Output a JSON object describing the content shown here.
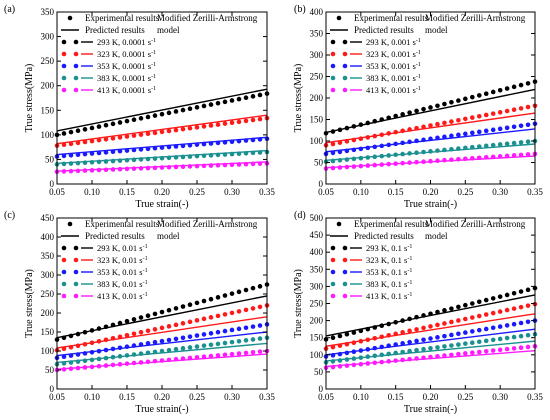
{
  "panels": [
    {
      "tag": "(a)",
      "model_label": [
        "Modified Zerilli-Armstrong",
        "model"
      ],
      "legend_exp": "Experimental results",
      "legend_pred": "Predicted results",
      "xlabel": "True strain(-)",
      "ylabel": "True stress(MPa)",
      "xlim": [
        0.05,
        0.35
      ],
      "ylim": [
        0,
        350
      ],
      "xticks": [
        "0.05",
        "0.10",
        "0.15",
        "0.20",
        "0.25",
        "0.30",
        "0.35"
      ],
      "yticks": [
        "0",
        "50",
        "100",
        "150",
        "200",
        "250",
        "300",
        "350"
      ],
      "series": [
        {
          "name": "293 K, 0.0001 s",
          "sup": "-1",
          "color": "#000000",
          "exp": [
            100,
            184
          ],
          "pred": [
            108,
            193
          ]
        },
        {
          "name": "323 K, 0.0001 s",
          "sup": "-1",
          "color": "#ff1a1a",
          "exp": [
            78,
            134
          ],
          "pred": [
            82,
            140
          ]
        },
        {
          "name": "353 K, 0.0001 s",
          "sup": "-1",
          "color": "#1a1aff",
          "exp": [
            56,
            92
          ],
          "pred": [
            60,
            95
          ]
        },
        {
          "name": "383 K, 0.0001 s",
          "sup": "-1",
          "color": "#1a9090",
          "exp": [
            40,
            65
          ],
          "pred": [
            42,
            68
          ]
        },
        {
          "name": "413 K, 0.0001 s",
          "sup": "-1",
          "color": "#ff1aff",
          "exp": [
            25,
            42
          ],
          "pred": [
            26,
            45
          ]
        }
      ]
    },
    {
      "tag": "(b)",
      "model_label": [
        "Modified Zerilli-Armstrong",
        "model"
      ],
      "legend_exp": "Experimental results",
      "legend_pred": "Predicted results",
      "xlabel": "True strain(-)",
      "ylabel": "True stress(MPa)",
      "xlim": [
        0.05,
        0.35
      ],
      "ylim": [
        0,
        400
      ],
      "xticks": [
        "0.05",
        "0.10",
        "0.15",
        "0.20",
        "0.25",
        "0.30",
        "0.35"
      ],
      "yticks": [
        "0",
        "50",
        "100",
        "150",
        "200",
        "250",
        "300",
        "350",
        "400"
      ],
      "series": [
        {
          "name": "293 K, 0.001 s",
          "sup": "-1",
          "color": "#000000",
          "exp": [
            118,
            238
          ],
          "pred": [
            120,
            220
          ]
        },
        {
          "name": "323 K, 0.001 s",
          "sup": "-1",
          "color": "#ff1a1a",
          "exp": [
            90,
            182
          ],
          "pred": [
            96,
            165
          ]
        },
        {
          "name": "353 K, 0.001 s",
          "sup": "-1",
          "color": "#1a1aff",
          "exp": [
            70,
            140
          ],
          "pred": [
            75,
            128
          ]
        },
        {
          "name": "383 K, 0.001 s",
          "sup": "-1",
          "color": "#1a9090",
          "exp": [
            52,
            100
          ],
          "pred": [
            55,
            93
          ]
        },
        {
          "name": "413 K, 0.001 s",
          "sup": "-1",
          "color": "#ff1aff",
          "exp": [
            36,
            70
          ],
          "pred": [
            38,
            65
          ]
        }
      ]
    },
    {
      "tag": "(c)",
      "model_label": [
        "Modified Zerilli-Armstrong",
        "model"
      ],
      "legend_exp": "Experimental results",
      "legend_pred": "Predicted results",
      "xlabel": "True strain(-)",
      "ylabel": "True stress(MPa)",
      "xlim": [
        0.05,
        0.35
      ],
      "ylim": [
        0,
        450
      ],
      "xticks": [
        "0.05",
        "0.10",
        "0.15",
        "0.20",
        "0.25",
        "0.30",
        "0.35"
      ],
      "yticks": [
        "0",
        "50",
        "100",
        "150",
        "200",
        "250",
        "300",
        "350",
        "400",
        "450"
      ],
      "series": [
        {
          "name": "293 K, 0.01 s",
          "sup": "-1",
          "color": "#000000",
          "exp": [
            130,
            275
          ],
          "pred": [
            135,
            245
          ]
        },
        {
          "name": "323 K, 0.01 s",
          "sup": "-1",
          "color": "#ff1a1a",
          "exp": [
            102,
            220
          ],
          "pred": [
            108,
            190
          ]
        },
        {
          "name": "353 K, 0.01 s",
          "sup": "-1",
          "color": "#1a1aff",
          "exp": [
            82,
            170
          ],
          "pred": [
            88,
            150
          ]
        },
        {
          "name": "383 K, 0.01 s",
          "sup": "-1",
          "color": "#1a9090",
          "exp": [
            65,
            135
          ],
          "pred": [
            70,
            120
          ]
        },
        {
          "name": "413 K, 0.01 s",
          "sup": "-1",
          "color": "#ff1aff",
          "exp": [
            50,
            100
          ],
          "pred": [
            52,
            92
          ]
        }
      ]
    },
    {
      "tag": "(d)",
      "model_label": [
        "Modified Zerilli-Armstrong",
        "model"
      ],
      "legend_exp": "Experimental results",
      "legend_pred": "Predicted results",
      "xlabel": "True strain(-)",
      "ylabel": "True stress(MPa)",
      "xlim": [
        0.05,
        0.35
      ],
      "ylim": [
        0,
        500
      ],
      "xticks": [
        "0.05",
        "0.10",
        "0.15",
        "0.20",
        "0.25",
        "0.30",
        "0.35"
      ],
      "yticks": [
        "0",
        "50",
        "100",
        "150",
        "200",
        "250",
        "300",
        "350",
        "400",
        "450",
        "500"
      ],
      "series": [
        {
          "name": "293 K, 0.1 s",
          "sup": "-1",
          "color": "#000000",
          "exp": [
            145,
            295
          ],
          "pred": [
            155,
            275
          ]
        },
        {
          "name": "323 K, 0.1 s",
          "sup": "-1",
          "color": "#ff1a1a",
          "exp": [
            118,
            248
          ],
          "pred": [
            125,
            220
          ]
        },
        {
          "name": "353 K, 0.1 s",
          "sup": "-1",
          "color": "#1a1aff",
          "exp": [
            95,
            200
          ],
          "pred": [
            100,
            175
          ]
        },
        {
          "name": "383 K, 0.1 s",
          "sup": "-1",
          "color": "#1a9090",
          "exp": [
            78,
            160
          ],
          "pred": [
            82,
            140
          ]
        },
        {
          "name": "413 K, 0.1 s",
          "sup": "-1",
          "color": "#ff1aff",
          "exp": [
            62,
            125
          ],
          "pred": [
            66,
            112
          ]
        }
      ]
    }
  ],
  "chart_data": [
    {
      "type": "scatter",
      "title": "",
      "xlabel": "True strain(-)",
      "ylabel": "True stress(MPa)",
      "xlim": [
        0.05,
        0.35
      ],
      "ylim": [
        0,
        350
      ],
      "series": [
        {
          "name": "293 K, 0.0001 s-1",
          "experimental": [
            [
              0.05,
              100
            ],
            [
              0.35,
              184
            ]
          ],
          "predicted": [
            [
              0.05,
              108
            ],
            [
              0.35,
              193
            ]
          ]
        },
        {
          "name": "323 K, 0.0001 s-1",
          "experimental": [
            [
              0.05,
              78
            ],
            [
              0.35,
              134
            ]
          ],
          "predicted": [
            [
              0.05,
              82
            ],
            [
              0.35,
              140
            ]
          ]
        },
        {
          "name": "353 K, 0.0001 s-1",
          "experimental": [
            [
              0.05,
              56
            ],
            [
              0.35,
              92
            ]
          ],
          "predicted": [
            [
              0.05,
              60
            ],
            [
              0.35,
              95
            ]
          ]
        },
        {
          "name": "383 K, 0.0001 s-1",
          "experimental": [
            [
              0.05,
              40
            ],
            [
              0.35,
              65
            ]
          ],
          "predicted": [
            [
              0.05,
              42
            ],
            [
              0.35,
              68
            ]
          ]
        },
        {
          "name": "413 K, 0.0001 s-1",
          "experimental": [
            [
              0.05,
              25
            ],
            [
              0.35,
              42
            ]
          ],
          "predicted": [
            [
              0.05,
              26
            ],
            [
              0.35,
              45
            ]
          ]
        }
      ]
    },
    {
      "type": "scatter",
      "title": "",
      "xlabel": "True strain(-)",
      "ylabel": "True stress(MPa)",
      "xlim": [
        0.05,
        0.35
      ],
      "ylim": [
        0,
        400
      ],
      "series": [
        {
          "name": "293 K, 0.001 s-1",
          "experimental": [
            [
              0.05,
              118
            ],
            [
              0.35,
              238
            ]
          ],
          "predicted": [
            [
              0.05,
              120
            ],
            [
              0.35,
              220
            ]
          ]
        },
        {
          "name": "323 K, 0.001 s-1",
          "experimental": [
            [
              0.05,
              90
            ],
            [
              0.35,
              182
            ]
          ],
          "predicted": [
            [
              0.05,
              96
            ],
            [
              0.35,
              165
            ]
          ]
        },
        {
          "name": "353 K, 0.001 s-1",
          "experimental": [
            [
              0.05,
              70
            ],
            [
              0.35,
              140
            ]
          ],
          "predicted": [
            [
              0.05,
              75
            ],
            [
              0.35,
              128
            ]
          ]
        },
        {
          "name": "383 K, 0.001 s-1",
          "experimental": [
            [
              0.05,
              52
            ],
            [
              0.35,
              100
            ]
          ],
          "predicted": [
            [
              0.05,
              55
            ],
            [
              0.35,
              93
            ]
          ]
        },
        {
          "name": "413 K, 0.001 s-1",
          "experimental": [
            [
              0.05,
              36
            ],
            [
              0.35,
              70
            ]
          ],
          "predicted": [
            [
              0.05,
              38
            ],
            [
              0.35,
              65
            ]
          ]
        }
      ]
    },
    {
      "type": "scatter",
      "title": "",
      "xlabel": "True strain(-)",
      "ylabel": "True stress(MPa)",
      "xlim": [
        0.05,
        0.35
      ],
      "ylim": [
        0,
        450
      ],
      "series": [
        {
          "name": "293 K, 0.01 s-1",
          "experimental": [
            [
              0.05,
              130
            ],
            [
              0.35,
              275
            ]
          ],
          "predicted": [
            [
              0.05,
              135
            ],
            [
              0.35,
              245
            ]
          ]
        },
        {
          "name": "323 K, 0.01 s-1",
          "experimental": [
            [
              0.05,
              102
            ],
            [
              0.35,
              220
            ]
          ],
          "predicted": [
            [
              0.05,
              108
            ],
            [
              0.35,
              190
            ]
          ]
        },
        {
          "name": "353 K, 0.01 s-1",
          "experimental": [
            [
              0.05,
              82
            ],
            [
              0.35,
              170
            ]
          ],
          "predicted": [
            [
              0.05,
              88
            ],
            [
              0.35,
              150
            ]
          ]
        },
        {
          "name": "383 K, 0.01 s-1",
          "experimental": [
            [
              0.05,
              65
            ],
            [
              0.35,
              135
            ]
          ],
          "predicted": [
            [
              0.05,
              70
            ],
            [
              0.35,
              120
            ]
          ]
        },
        {
          "name": "413 K, 0.01 s-1",
          "experimental": [
            [
              0.05,
              50
            ],
            [
              0.35,
              100
            ]
          ],
          "predicted": [
            [
              0.05,
              52
            ],
            [
              0.35,
              92
            ]
          ]
        }
      ]
    },
    {
      "type": "scatter",
      "title": "",
      "xlabel": "True strain(-)",
      "ylabel": "True stress(MPa)",
      "xlim": [
        0.05,
        0.35
      ],
      "ylim": [
        0,
        500
      ],
      "series": [
        {
          "name": "293 K, 0.1 s-1",
          "experimental": [
            [
              0.05,
              145
            ],
            [
              0.35,
              295
            ]
          ],
          "predicted": [
            [
              0.05,
              155
            ],
            [
              0.35,
              275
            ]
          ]
        },
        {
          "name": "323 K, 0.1 s-1",
          "experimental": [
            [
              0.05,
              118
            ],
            [
              0.35,
              248
            ]
          ],
          "predicted": [
            [
              0.05,
              125
            ],
            [
              0.35,
              220
            ]
          ]
        },
        {
          "name": "353 K, 0.1 s-1",
          "experimental": [
            [
              0.05,
              95
            ],
            [
              0.35,
              200
            ]
          ],
          "predicted": [
            [
              0.05,
              100
            ],
            [
              0.35,
              175
            ]
          ]
        },
        {
          "name": "383 K, 0.1 s-1",
          "experimental": [
            [
              0.05,
              78
            ],
            [
              0.35,
              160
            ]
          ],
          "predicted": [
            [
              0.05,
              82
            ],
            [
              0.35,
              140
            ]
          ]
        },
        {
          "name": "413 K, 0.1 s-1",
          "experimental": [
            [
              0.05,
              62
            ],
            [
              0.35,
              125
            ]
          ],
          "predicted": [
            [
              0.05,
              66
            ],
            [
              0.35,
              112
            ]
          ]
        }
      ]
    }
  ]
}
